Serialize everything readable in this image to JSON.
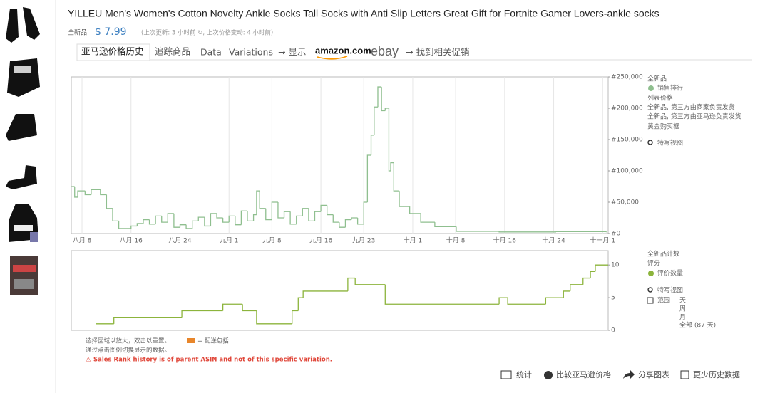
{
  "page": {
    "title": "YILLEU Men's Women's Cotton Novelty Ankle Socks Tall Socks with Anti Slip Letters Great Gift for Fortnite Gamer Lovers-ankle socks",
    "price_label": "全新品:",
    "price": "$ 7.99",
    "update_note": "(上次更新: 3 小时前 ↻, 上次价格变动: 4 小时前)",
    "tabs": [
      "亚马逊价格历史",
      "追踪商品",
      "Data",
      "Variations",
      "→ 显示",
      "amazon.com",
      "ebay",
      "→ 找到相关促销"
    ],
    "legend_top": [
      "全新品",
      "列表价格",
      "全新品, 第三方由商家负责发货",
      "全新品, 第三方由亚马逊负责发货",
      "黄金购买框",
      "特写视图"
    ],
    "legend_bottom": [
      "全新品计数",
      "评分",
      "特写视图",
      "范围",
      "天",
      "周",
      "月",
      "全部 (87 天)"
    ],
    "notes": [
      "选择区域以放大，双击以重置。",
      "= 配送包括",
      "通过点击图例切换显示的数据。",
      "Sales Rank history is of parent ASIN and not of this specific variation."
    ],
    "buttons": [
      "统计",
      "比较亚马逊价格",
      "分享图表",
      "更少历史数据"
    ]
  },
  "chart_data": [
    {
      "type": "line",
      "step": true,
      "x": [
        6.3,
        6.8,
        7.3,
        8.5,
        9.5,
        11,
        12,
        13,
        14,
        16,
        17,
        18,
        19,
        20,
        21,
        22,
        23,
        24,
        25,
        26,
        27,
        28,
        29,
        30,
        31,
        32,
        33,
        34,
        35,
        36,
        36.5,
        37,
        38,
        39,
        40,
        41,
        42,
        43,
        44,
        45,
        46,
        47,
        48,
        49,
        50,
        51,
        52,
        53,
        54,
        54.6,
        55.2,
        55.7,
        56.3,
        56.9,
        57.5,
        58.1,
        58.4,
        58.9,
        59.8,
        61.5,
        63.3,
        65.6,
        69.1,
        76.1,
        85.4,
        93.6
      ],
      "series": [
        {
          "name": "销售排行",
          "color": "#8fbf8f",
          "values": [
            75000,
            58000,
            68000,
            62000,
            70000,
            62000,
            40000,
            20000,
            8000,
            12000,
            16000,
            22000,
            15000,
            28000,
            18000,
            32000,
            10000,
            14000,
            8000,
            20000,
            26000,
            12000,
            32000,
            25000,
            18000,
            28000,
            14000,
            36000,
            20000,
            30000,
            68000,
            40000,
            22000,
            50000,
            25000,
            35000,
            15000,
            28000,
            40000,
            20000,
            35000,
            45000,
            30000,
            18000,
            10000,
            22000,
            25000,
            15000,
            50000,
            125000,
            157000,
            202000,
            234000,
            196000,
            200000,
            100000,
            113000,
            68000,
            43000,
            32000,
            18000,
            11000,
            3400,
            2500,
            3000,
            2000
          ]
        }
      ],
      "xlim": [
        6.25,
        93.9
      ],
      "xticks": [
        {
          "value": 8,
          "label": "八月 8"
        },
        {
          "value": 16,
          "label": "八月 16"
        },
        {
          "value": 24,
          "label": "八月 24"
        },
        {
          "value": 32,
          "label": "九月 1"
        },
        {
          "value": 39,
          "label": "九月 8"
        },
        {
          "value": 47,
          "label": "九月 16"
        },
        {
          "value": 54,
          "label": "九月 23"
        },
        {
          "value": 62,
          "label": "十月 1"
        },
        {
          "value": 69,
          "label": "十月 8"
        },
        {
          "value": 77,
          "label": "十月 16"
        },
        {
          "value": 85,
          "label": "十月 24"
        },
        {
          "value": 93,
          "label": "十一月 1"
        }
      ],
      "ylim": [
        0,
        250000
      ],
      "yticks": [
        {
          "value": 0,
          "label": "#0"
        },
        {
          "value": 50000,
          "label": "#50,000"
        },
        {
          "value": 100000,
          "label": "#100,000"
        },
        {
          "value": 150000,
          "label": "#150,000"
        },
        {
          "value": 200000,
          "label": "#200,000"
        },
        {
          "value": 250000,
          "label": "#250,000"
        }
      ],
      "grid": true
    },
    {
      "type": "line",
      "step": true,
      "x": [
        10.3,
        13.2,
        24.3,
        31.0,
        34.2,
        36.5,
        42.3,
        43.3,
        44.1,
        44.7,
        51.4,
        52.6,
        57.5,
        76.1,
        77.5,
        83.7,
        86.6,
        87.7,
        89.8,
        91.0,
        91.8,
        93.9
      ],
      "series": [
        {
          "name": "评价数量",
          "color": "#8cb43c",
          "values": [
            1,
            2,
            3,
            4,
            3,
            1,
            3,
            5,
            6,
            6,
            8,
            7,
            4,
            5,
            4,
            5,
            6,
            7,
            8,
            9,
            10,
            10
          ]
        }
      ],
      "xlim": [
        6.25,
        93.9
      ],
      "ylim": [
        0,
        12.2
      ],
      "yticks": [
        0,
        5,
        10
      ],
      "grid": false
    }
  ]
}
